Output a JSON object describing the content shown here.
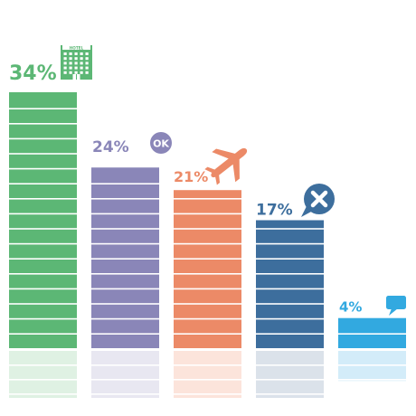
{
  "chart_data": {
    "type": "bar",
    "categories": [
      "hotel",
      "ok",
      "flight",
      "cancel",
      "message"
    ],
    "values": [
      34,
      24,
      21,
      17,
      4
    ],
    "value_labels": [
      "34%",
      "24%",
      "21%",
      "17%",
      "4%"
    ],
    "ylim": [
      0,
      34
    ],
    "grid": false,
    "legend": "none",
    "title": "",
    "xlabel": "",
    "ylabel": "",
    "icons": [
      "hotel-icon",
      "ok-badge-icon",
      "airplane-icon",
      "close-bubble-icon",
      "chat-bubble-icon"
    ],
    "colors": [
      "#5cb775",
      "#8a86b8",
      "#ec8a67",
      "#3d6e9d",
      "#32a9e0"
    ],
    "reflection_colors": [
      "#dff1e3",
      "#e8e7f1",
      "#fce4db",
      "#dbe2ea",
      "#d3ecf9"
    ],
    "hotel_sign": "HOTEL",
    "ok_text": "OK"
  }
}
